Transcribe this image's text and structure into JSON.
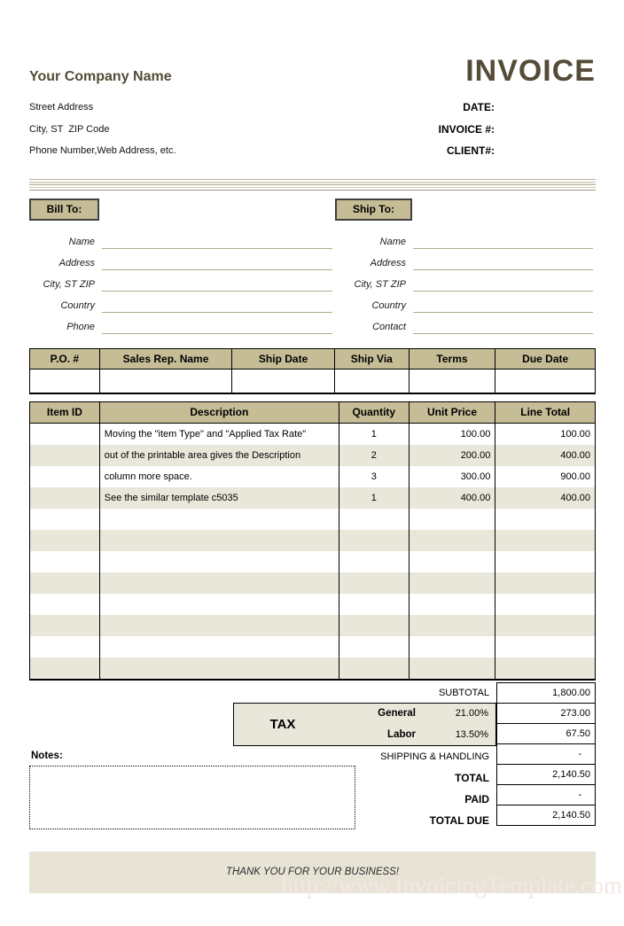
{
  "header": {
    "company_name": "Your Company Name",
    "address_lines": [
      "Street Address",
      "City, ST  ZIP Code",
      "Phone Number,Web Address, etc."
    ],
    "invoice_title": "INVOICE",
    "meta_labels": {
      "date": "DATE:",
      "invoice_no": "INVOICE #:",
      "client_no": "CLIENT#:"
    }
  },
  "bill_to": {
    "title": "Bill To:",
    "fields": [
      "Name",
      "Address",
      "City, ST ZIP",
      "Country",
      "Phone"
    ]
  },
  "ship_to": {
    "title": "Ship To:",
    "fields": [
      "Name",
      "Address",
      "City, ST ZIP",
      "Country",
      "Contact"
    ]
  },
  "order_table": {
    "headers": [
      "P.O. #",
      "Sales Rep. Name",
      "Ship Date",
      "Ship Via",
      "Terms",
      "Due Date"
    ],
    "row": [
      "",
      "",
      "",
      "",
      "",
      ""
    ]
  },
  "items_table": {
    "headers": [
      "Item ID",
      "Description",
      "Quantity",
      "Unit Price",
      "Line Total"
    ],
    "rows": [
      {
        "item_id": "",
        "description": "Moving the \"item Type\" and \"Applied Tax Rate\"",
        "quantity": "1",
        "unit_price": "100.00",
        "line_total": "100.00"
      },
      {
        "item_id": "",
        "description": "out of the printable area gives the Description",
        "quantity": "2",
        "unit_price": "200.00",
        "line_total": "400.00"
      },
      {
        "item_id": "",
        "description": "column more space.",
        "quantity": "3",
        "unit_price": "300.00",
        "line_total": "900.00"
      },
      {
        "item_id": "",
        "description": "See the similar template c5035",
        "quantity": "1",
        "unit_price": "400.00",
        "line_total": "400.00"
      }
    ],
    "empty_row_count": 8
  },
  "totals": {
    "subtotal": {
      "label": "SUBTOTAL",
      "value": "1,800.00"
    },
    "tax": {
      "label": "TAX",
      "rows": [
        {
          "name": "General",
          "rate": "21.00%",
          "value": "273.00"
        },
        {
          "name": "Labor",
          "rate": "13.50%",
          "value": "67.50"
        }
      ]
    },
    "shipping": {
      "label": "SHIPPING & HANDLING",
      "value": "-"
    },
    "total": {
      "label": "TOTAL",
      "value": "2,140.50"
    },
    "paid": {
      "label": "PAID",
      "value": "-"
    },
    "total_due": {
      "label": "TOTAL DUE",
      "value": "2,140.50"
    }
  },
  "notes": {
    "label": "Notes:",
    "content": ""
  },
  "footer": {
    "thank_you": "THANK YOU FOR YOUR BUSINESS!",
    "watermark": "http://www.InvoicingTemplate.com"
  },
  "colors": {
    "header_tan": "#c6bd96",
    "row_beige": "#e9e6da",
    "band_beige": "#e7e4d6",
    "title_brown": "#544c38",
    "underline_tan": "#b2a98c",
    "watermark_pink": "#f6e6e4"
  }
}
